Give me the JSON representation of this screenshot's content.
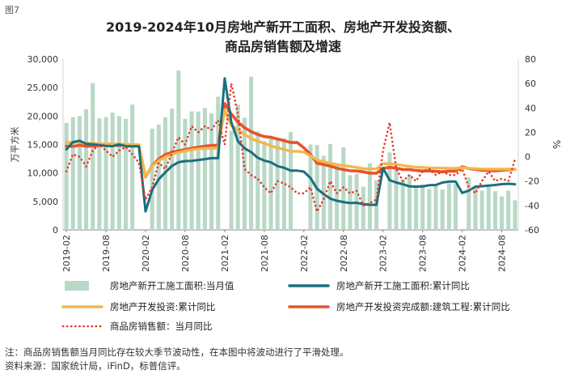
{
  "figure_label": "图7",
  "title_line1": "2019-2024年10月房地产新开工面积、房地产开发投资额、",
  "title_line2": "商品房销售额及增速",
  "note": "注：商品房销售额当月同比存在较大季节波动性，在本图中将波动进行了平滑处理。",
  "source": "资料来源：国家统计局，iFinD，标普信评。",
  "colors": {
    "bar": "#b9d8c6",
    "new_start_yoy": "#1b6e7e",
    "investment_yoy": "#f2b84b",
    "construction_yoy": "#e8532a",
    "sales_yoy": "#e03a2a",
    "axis": "#888888"
  },
  "chart_data": {
    "type": "bar+line",
    "left_axis": {
      "label": "万平方米",
      "min": 0,
      "max": 30000,
      "ticks": [
        0,
        5000,
        10000,
        15000,
        20000,
        25000,
        30000
      ],
      "tick_labels": [
        "0",
        "5,000",
        "10,000",
        "15,000",
        "20,000",
        "25,000",
        "30,000"
      ]
    },
    "right_axis": {
      "label": "%",
      "min": -60,
      "max": 80,
      "ticks": [
        -60,
        -40,
        -20,
        0,
        20,
        40,
        60,
        80
      ],
      "tick_labels": [
        "-60",
        "-40",
        "-20",
        "0",
        "20",
        "40",
        "60",
        "80"
      ]
    },
    "x_tick_labels": [
      "2019-02",
      "2019-08",
      "2020-02",
      "2020-08",
      "2021-02",
      "2021-08",
      "2022-02",
      "2022-08",
      "2023-02",
      "2023-08",
      "2024-02",
      "2024-08"
    ],
    "months": [
      "2019-02",
      "2019-03",
      "2019-04",
      "2019-05",
      "2019-06",
      "2019-07",
      "2019-08",
      "2019-09",
      "2019-10",
      "2019-11",
      "2019-12",
      "2020-01",
      "2020-02",
      "2020-03",
      "2020-04",
      "2020-05",
      "2020-06",
      "2020-07",
      "2020-08",
      "2020-09",
      "2020-10",
      "2020-11",
      "2020-12",
      "2021-01",
      "2021-02",
      "2021-03",
      "2021-04",
      "2021-05",
      "2021-06",
      "2021-07",
      "2021-08",
      "2021-09",
      "2021-10",
      "2021-11",
      "2021-12",
      "2022-01",
      "2022-02",
      "2022-03",
      "2022-04",
      "2022-05",
      "2022-06",
      "2022-07",
      "2022-08",
      "2022-09",
      "2022-10",
      "2022-11",
      "2022-12",
      "2023-01",
      "2023-02",
      "2023-03",
      "2023-04",
      "2023-05",
      "2023-06",
      "2023-07",
      "2023-08",
      "2023-09",
      "2023-10",
      "2023-11",
      "2023-12",
      "2024-01",
      "2024-02",
      "2024-03",
      "2024-04",
      "2024-05",
      "2024-06",
      "2024-07",
      "2024-08",
      "2024-09",
      "2024-10"
    ],
    "series": [
      {
        "name": "房地产新开工施工面积:当月值",
        "axis": "left",
        "style": "bar",
        "values": [
          18800,
          19800,
          20000,
          21200,
          25800,
          19600,
          19800,
          20600,
          20000,
          19500,
          22000,
          null,
          null,
          17800,
          18500,
          19800,
          21300,
          28000,
          19500,
          20800,
          20800,
          21400,
          20500,
          23400,
          null,
          17400,
          22000,
          19700,
          26900,
          17300,
          15600,
          16400,
          16200,
          16100,
          17200,
          null,
          null,
          15000,
          14900,
          13000,
          15100,
          11500,
          14500,
          9600,
          9800,
          7600,
          11700,
          8700,
          null,
          13600,
          11000,
          8900,
          9700,
          7400,
          8000,
          7200,
          8000,
          7100,
          8200,
          8000,
          null,
          9200,
          7500,
          6900,
          8000,
          6800,
          5900,
          6900,
          5200
        ]
      },
      {
        "name": "房地产新开工施工面积:累计同比",
        "axis": "right",
        "style": "line",
        "values": [
          6,
          11.9,
          13.1,
          10.5,
          10.1,
          9.5,
          8.9,
          8.6,
          10,
          8.6,
          8.5,
          8.5,
          -44.9,
          -27.2,
          -18.4,
          -12.8,
          -7.6,
          -4.5,
          -3.6,
          -3.4,
          -2.7,
          -2,
          -1.2,
          -1.2,
          64.3,
          28.2,
          12.8,
          6.9,
          3.8,
          -0.9,
          -3.2,
          -4.5,
          -7.7,
          -9.1,
          -11.4,
          -11.4,
          -12.2,
          -17.5,
          -26.3,
          -30.6,
          -34.4,
          -36.1,
          -37.2,
          -38,
          -37.8,
          -38.9,
          -39.4,
          -39.4,
          -9.4,
          -19.2,
          -21.2,
          -22.6,
          -24.3,
          -24.5,
          -24.4,
          -23.4,
          -23.2,
          -21.2,
          -20.4,
          -20.4,
          -29.7,
          -27.8,
          -24.6,
          -24.2,
          -23.7,
          -23.2,
          -22.5,
          -22.2,
          -22.6
        ]
      },
      {
        "name": "房地产开发投资:累计同比",
        "axis": "right",
        "style": "line",
        "values": [
          11.6,
          11.8,
          11.9,
          11.2,
          10.9,
          10.6,
          10.5,
          10.5,
          10.3,
          10.2,
          9.9,
          9.9,
          -16.3,
          -7.7,
          -3.3,
          -0.3,
          1.9,
          3.4,
          4.6,
          5.6,
          6.3,
          6.8,
          7,
          7,
          38.3,
          25.6,
          21.6,
          18.3,
          15,
          12.7,
          10.9,
          8.8,
          7.2,
          6,
          4.4,
          4.4,
          3.7,
          0.7,
          -2.7,
          -4,
          -5.4,
          -6.4,
          -7.4,
          -8,
          -8.8,
          -9.8,
          -10,
          -10,
          -5.7,
          -5.8,
          -6.2,
          -7.2,
          -7.9,
          -8.5,
          -8.8,
          -9.1,
          -9.3,
          -9.4,
          -9.6,
          -9.6,
          -9,
          -9.5,
          -9.8,
          -10.1,
          -10.1,
          -10.2,
          -10.2,
          -10.1,
          -10.3
        ]
      },
      {
        "name": "房地产开发投资完成额:建筑工程:累计同比",
        "axis": "right",
        "style": "line",
        "values": [
          8.6,
          8.4,
          9.5,
          8.6,
          8.7,
          9.2,
          9.3,
          9.4,
          9.2,
          9.6,
          8.8,
          8.8,
          -16.6,
          -7.4,
          -1.9,
          1.7,
          3.6,
          4.8,
          5.8,
          6.9,
          7.8,
          8.6,
          9.3,
          9.3,
          43.6,
          35.1,
          28.4,
          23.8,
          20.6,
          18.2,
          16.5,
          15.9,
          14.5,
          13.2,
          11.6,
          11.6,
          7.3,
          1.9,
          -5.4,
          -6.4,
          -7.7,
          -9.4,
          -10.6,
          -11.5,
          -11.7,
          -12.4,
          -13.5,
          -13.5,
          -9.6,
          -8.8,
          -9.3,
          -10.5,
          -10.5,
          -11.3,
          -11.7,
          -11.7,
          -12,
          -12.4,
          -11.8,
          -11.8,
          -8.2,
          -9.8,
          -10.4,
          -11.1,
          -11.3,
          -11.6,
          -11.1,
          -10.7,
          -10.3
        ]
      },
      {
        "name": "商品房销售额：当月同比",
        "axis": "right",
        "style": "dotted",
        "values": [
          -12,
          2,
          0,
          -8,
          5,
          10,
          5,
          0,
          5,
          8,
          2,
          -5,
          -35,
          -25,
          -5,
          -10,
          3,
          16,
          10,
          25,
          20,
          25,
          22,
          30,
          10,
          60,
          35,
          -10,
          -15,
          -18,
          -25,
          -30,
          -20,
          -22,
          -25,
          -30,
          -30,
          -25,
          -45,
          -35,
          -20,
          -30,
          -25,
          -30,
          -28,
          -40,
          -38,
          -35,
          5,
          28,
          -10,
          -20,
          -15,
          -20,
          -12,
          -10,
          -15,
          -12,
          -15,
          -15,
          -10,
          -25,
          -30,
          -20,
          -12,
          -20,
          -18,
          -20,
          -2
        ]
      }
    ]
  },
  "legend": {
    "bar": "房地产新开工施工面积:当月值",
    "new_start_yoy": "房地产新开工施工面积:累计同比",
    "investment_yoy": "房地产开发投资:累计同比",
    "construction_yoy": "房地产开发投资完成额:建筑工程:累计同比",
    "sales_yoy": "商品房销售额：当月同比"
  }
}
